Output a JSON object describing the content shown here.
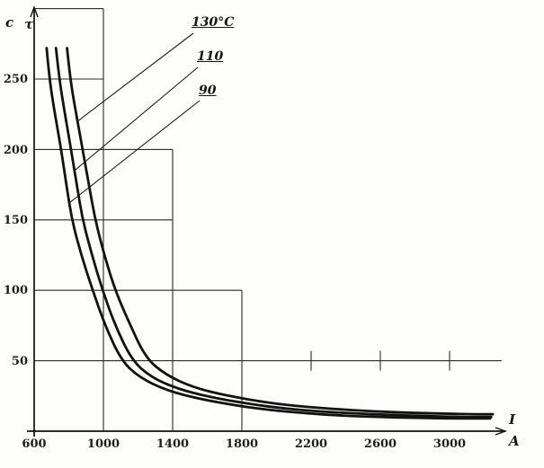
{
  "page": {
    "background": "#fdfdfb",
    "ink": "#161616"
  },
  "axis_symbols": {
    "y_unit": "c",
    "y_symbol": "τ",
    "x_symbol": "I",
    "x_unit": "A"
  },
  "chart_data": {
    "type": "line",
    "title": "",
    "xlabel": "I, A",
    "ylabel": "τ, c",
    "xlim": [
      600,
      3300
    ],
    "ylim": [
      0,
      300
    ],
    "x_ticks": [
      600,
      1000,
      1400,
      1800,
      2200,
      2600,
      3000
    ],
    "y_ticks": [
      250,
      200,
      150,
      100,
      50
    ],
    "grid": "partial-stepped",
    "legend": "inline-curve-labels",
    "series": [
      {
        "name": "130°C",
        "points": [
          [
            790,
            272
          ],
          [
            808,
            250
          ],
          [
            843,
            225
          ],
          [
            880,
            200
          ],
          [
            916,
            175
          ],
          [
            953,
            150
          ],
          [
            1005,
            125
          ],
          [
            1068,
            100
          ],
          [
            1145,
            78
          ],
          [
            1244,
            52
          ],
          [
            1360,
            40
          ],
          [
            1520,
            31
          ],
          [
            1720,
            25
          ],
          [
            1960,
            20
          ],
          [
            2150,
            17.5
          ],
          [
            2360,
            15.5
          ],
          [
            2570,
            14
          ],
          [
            2780,
            13
          ],
          [
            2990,
            12.4
          ],
          [
            3140,
            12
          ],
          [
            3250,
            12
          ]
        ]
      },
      {
        "name": "110",
        "points": [
          [
            726,
            272
          ],
          [
            745,
            250
          ],
          [
            778,
            225
          ],
          [
            813,
            200
          ],
          [
            846,
            175
          ],
          [
            880,
            150
          ],
          [
            934,
            125
          ],
          [
            995,
            100
          ],
          [
            1068,
            75
          ],
          [
            1166,
            50
          ],
          [
            1280,
            38
          ],
          [
            1430,
            30
          ],
          [
            1620,
            24
          ],
          [
            1860,
            19
          ],
          [
            2050,
            16
          ],
          [
            2250,
            14
          ],
          [
            2460,
            12.5
          ],
          [
            2670,
            11.5
          ],
          [
            2880,
            10.7
          ],
          [
            3080,
            10
          ],
          [
            3240,
            10
          ]
        ]
      },
      {
        "name": "90",
        "points": [
          [
            672,
            272
          ],
          [
            688,
            250
          ],
          [
            720,
            225
          ],
          [
            756,
            200
          ],
          [
            786,
            175
          ],
          [
            818,
            150
          ],
          [
            872,
            125
          ],
          [
            938,
            100
          ],
          [
            1010,
            75
          ],
          [
            1104,
            50
          ],
          [
            1210,
            38
          ],
          [
            1364,
            29
          ],
          [
            1550,
            23
          ],
          [
            1779,
            18
          ],
          [
            1960,
            15
          ],
          [
            2169,
            12.7
          ],
          [
            2380,
            11
          ],
          [
            2584,
            10
          ],
          [
            2800,
            9.5
          ],
          [
            3000,
            9
          ],
          [
            3234,
            9
          ]
        ]
      }
    ]
  }
}
